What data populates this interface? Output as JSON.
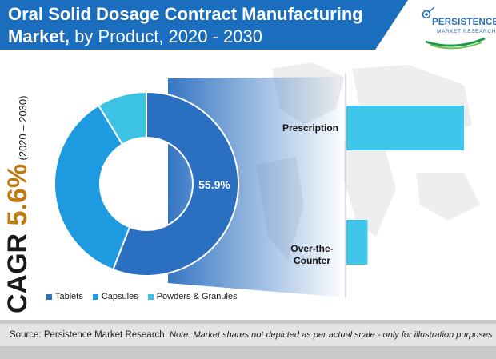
{
  "header": {
    "title_bold": "Oral Solid Dosage Contract Manufacturing",
    "title_bold2": "Market,",
    "title_rest": " by Product, 2020 - 2030"
  },
  "logo": {
    "name": "PERSISTENCE",
    "subtitle": "MARKET RESEARCH"
  },
  "cagr": {
    "prefix": "CAGR ",
    "value": "5.6%",
    "period": "(2020 – 2030)"
  },
  "colors": {
    "header": "#1b6dbd",
    "tablets": "#2b6fc0",
    "capsules": "#1e9be0",
    "powders": "#3cc3e4",
    "bars": "#3fc6ea",
    "cagr_value": "#c07a12"
  },
  "chart_data": [
    {
      "type": "pie",
      "labels": [
        "Tablets",
        "Capsules",
        "Powders & Granules"
      ],
      "values": [
        55.9,
        35.4,
        8.7
      ],
      "data_labels": [
        "55.9%",
        "",
        ""
      ],
      "legend_position": "bottom"
    },
    {
      "type": "bar",
      "categories": [
        "Prescription",
        "Over-the-Counter"
      ],
      "category_labels": [
        "Prescription",
        "Over-the-\nCounter"
      ],
      "values": [
        100,
        18
      ],
      "orientation": "horizontal"
    }
  ],
  "footer": {
    "source": "Source: Persistence Market Research",
    "note": "Note: Market shares not depicted as per actual scale - only for illustration purposes"
  }
}
